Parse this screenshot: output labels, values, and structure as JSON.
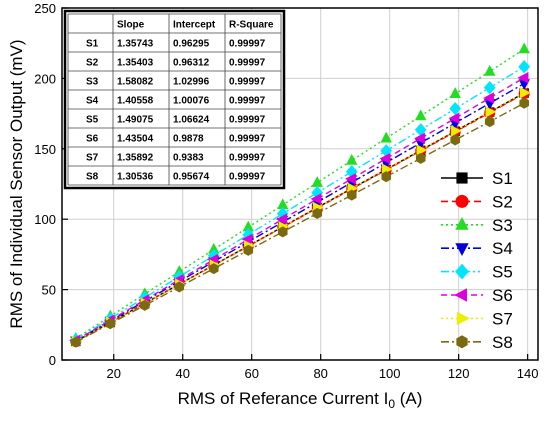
{
  "chart_data": {
    "type": "line",
    "title": "",
    "xlabel": "RMS of Referance Current I",
    "xlabel_sub": "0",
    "xlabel_unit": " (A)",
    "ylabel": "RMS of Individual Sensor Output (mV)",
    "xlim": [
      5,
      143
    ],
    "ylim": [
      0,
      250
    ],
    "x_ticks": [
      20,
      40,
      60,
      80,
      100,
      120,
      140
    ],
    "y_ticks": [
      0,
      50,
      100,
      150,
      200,
      250
    ],
    "grid": true,
    "legend_position": "right",
    "x": [
      9,
      19,
      29,
      39,
      49,
      59,
      69,
      79,
      89,
      99,
      109,
      119,
      129,
      139
    ],
    "series": [
      {
        "name": "S1",
        "slope": 1.35743,
        "intercept": 0.96295,
        "color": "#000000",
        "marker": "square",
        "dash": "",
        "values": [
          13.2,
          26.7,
          40.3,
          53.9,
          67.5,
          81.0,
          94.6,
          108.2,
          121.8,
          135.3,
          148.9,
          162.5,
          176.1,
          189.6
        ]
      },
      {
        "name": "S2",
        "slope": 1.35403,
        "intercept": 0.96312,
        "color": "#ff0000",
        "marker": "circle",
        "dash": "7,4",
        "values": [
          13.1,
          26.7,
          40.2,
          53.8,
          67.3,
          80.8,
          94.4,
          107.9,
          121.5,
          135.0,
          148.6,
          162.1,
          175.6,
          189.2
        ]
      },
      {
        "name": "S3",
        "slope": 1.58082,
        "intercept": 1.02996,
        "color": "#22dd22",
        "marker": "triangle-up",
        "dash": "2,3",
        "values": [
          15.3,
          31.1,
          46.9,
          62.7,
          78.5,
          94.3,
          110.1,
          125.9,
          141.7,
          157.5,
          173.3,
          189.1,
          204.9,
          220.8
        ]
      },
      {
        "name": "S4",
        "slope": 1.40558,
        "intercept": 1.00076,
        "color": "#0000dd",
        "marker": "triangle-down",
        "dash": "8,3,2,3",
        "values": [
          13.7,
          27.7,
          41.8,
          55.8,
          69.9,
          83.9,
          98.0,
          112.0,
          126.1,
          140.2,
          154.2,
          168.3,
          182.3,
          196.4
        ]
      },
      {
        "name": "S5",
        "slope": 1.49075,
        "intercept": 1.06624,
        "color": "#00e5ff",
        "marker": "diamond",
        "dash": "8,3,2,3,2,3",
        "values": [
          14.5,
          29.4,
          44.3,
          59.2,
          74.1,
          89.0,
          103.9,
          118.8,
          133.7,
          148.6,
          163.5,
          178.5,
          193.4,
          208.3
        ]
      },
      {
        "name": "S6",
        "slope": 1.43504,
        "intercept": 0.9878,
        "color": "#dd00dd",
        "marker": "triangle-left",
        "dash": "6,4",
        "values": [
          13.9,
          28.3,
          42.6,
          57.0,
          71.3,
          85.7,
          100.0,
          114.4,
          128.7,
          143.1,
          157.4,
          171.7,
          186.1,
          200.5
        ]
      },
      {
        "name": "S7",
        "slope": 1.35892,
        "intercept": 0.9383,
        "color": "#eeee00",
        "marker": "triangle-right",
        "dash": "2,3",
        "values": [
          13.2,
          26.8,
          40.4,
          53.9,
          67.5,
          81.1,
          94.7,
          108.3,
          121.9,
          135.5,
          149.1,
          162.7,
          176.2,
          189.8
        ]
      },
      {
        "name": "S8",
        "slope": 1.30536,
        "intercept": 0.95674,
        "color": "#7a6a10",
        "marker": "hexagon",
        "dash": "8,3,2,3",
        "values": [
          12.7,
          25.8,
          38.8,
          51.9,
          64.9,
          77.9,
          91.0,
          104.1,
          117.1,
          130.2,
          143.2,
          156.3,
          169.3,
          182.4
        ]
      }
    ]
  },
  "inset_table": {
    "headers": [
      "",
      "Slope",
      "Intercept",
      "R-Square"
    ],
    "rows": [
      [
        "S1",
        "1.35743",
        "0.96295",
        "0.99997"
      ],
      [
        "S2",
        "1.35403",
        "0.96312",
        "0.99997"
      ],
      [
        "S3",
        "1.58082",
        "1.02996",
        "0.99997"
      ],
      [
        "S4",
        "1.40558",
        "1.00076",
        "0.99997"
      ],
      [
        "S5",
        "1.49075",
        "1.06624",
        "0.99997"
      ],
      [
        "S6",
        "1.43504",
        "0.9878",
        "0.99997"
      ],
      [
        "S7",
        "1.35892",
        "0.9383",
        "0.99997"
      ],
      [
        "S8",
        "1.30536",
        "0.95674",
        "0.99997"
      ]
    ]
  }
}
